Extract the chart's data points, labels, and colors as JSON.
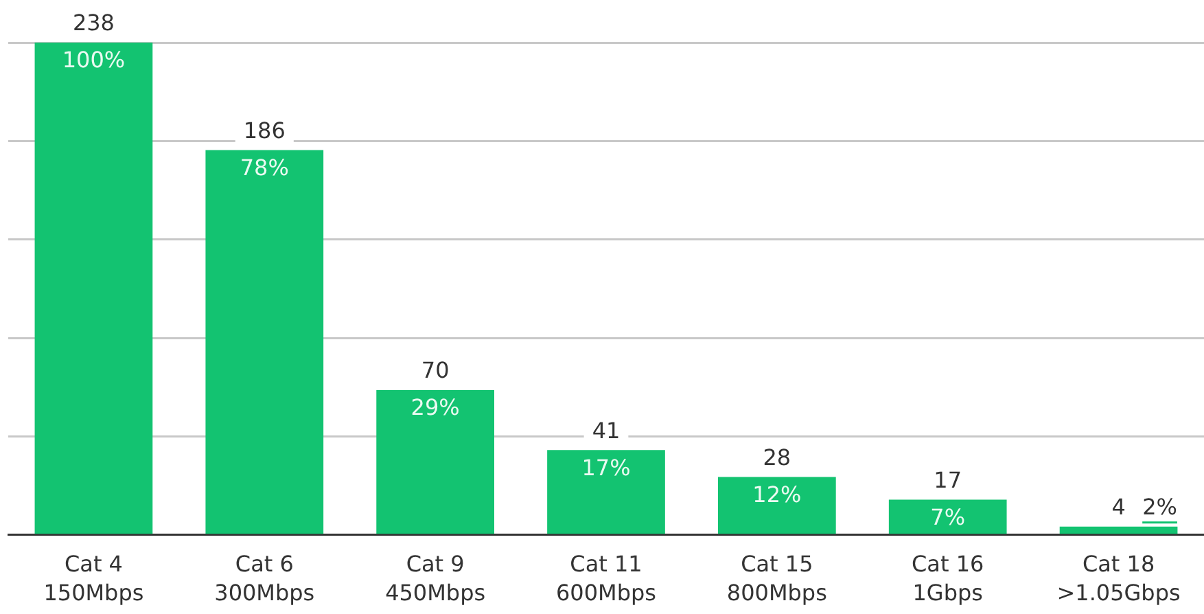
{
  "chart_data": {
    "type": "bar",
    "categories": [
      "Cat 4\n150Mbps",
      "Cat 6\n300Mbps",
      "Cat 9\n450Mbps",
      "Cat 11\n600Mbps",
      "Cat 15\n800Mbps",
      "Cat 16\n1Gbps",
      "Cat 18\n>1.05Gbps"
    ],
    "values": [
      238,
      186,
      70,
      41,
      28,
      17,
      4
    ],
    "color": "#13c371",
    "ylim": [
      0,
      238
    ],
    "yticks": [
      {
        "value": 0,
        "label": null
      },
      {
        "value": 47.6,
        "label": null
      },
      {
        "value": 95.2,
        "label": null
      },
      {
        "value": 142.8,
        "label": null
      },
      {
        "value": 190.4,
        "label": null
      },
      {
        "value": 238,
        "label": null
      }
    ],
    "tick_labels": "x",
    "grid": "y",
    "data_labels": true,
    "annotations": [
      {
        "text": "100%",
        "x": "Cat 4\n150Mbps",
        "y": 238
      },
      {
        "text": "78%",
        "x": "Cat 6\n300Mbps",
        "y": 186
      },
      {
        "text": "29%",
        "x": "Cat 9\n450Mbps",
        "y": 70
      },
      {
        "text": "17%",
        "x": "Cat 11\n600Mbps",
        "y": 41
      },
      {
        "text": "12%",
        "x": "Cat 15\n800Mbps",
        "y": 28
      },
      {
        "text": "7%",
        "x": "Cat 16\n1Gbps",
        "y": 17
      },
      {
        "text": "2%",
        "x": "Cat 18\n>1.05Gbps",
        "y": 4
      }
    ]
  }
}
